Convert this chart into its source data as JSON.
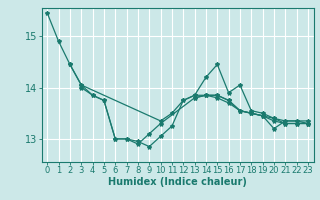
{
  "background_color": "#cce8e8",
  "grid_color": "#ffffff",
  "line_color": "#1a7a6e",
  "xlabel": "Humidex (Indice chaleur)",
  "xlim": [
    -0.5,
    23.5
  ],
  "ylim": [
    12.55,
    15.55
  ],
  "yticks": [
    13,
    14,
    15
  ],
  "xticks": [
    0,
    1,
    2,
    3,
    4,
    5,
    6,
    7,
    8,
    9,
    10,
    11,
    12,
    13,
    14,
    15,
    16,
    17,
    18,
    19,
    20,
    21,
    22,
    23
  ],
  "series": [
    [
      15.45,
      14.9,
      14.45,
      14.05,
      13.85,
      13.75,
      13.0,
      13.0,
      12.95,
      12.85,
      13.05,
      13.25,
      13.75,
      13.85,
      13.85,
      13.8,
      13.7,
      13.55,
      13.5,
      13.45,
      13.4,
      13.3,
      13.3,
      13.3
    ],
    [
      null,
      null,
      14.45,
      14.05,
      null,
      null,
      null,
      null,
      null,
      null,
      13.35,
      13.5,
      13.75,
      13.85,
      14.2,
      14.45,
      13.9,
      14.05,
      13.55,
      13.5,
      13.4,
      13.35,
      13.35,
      13.3
    ],
    [
      null,
      null,
      null,
      14.0,
      13.85,
      13.75,
      13.0,
      13.0,
      12.9,
      13.1,
      13.3,
      null,
      null,
      13.8,
      13.85,
      13.85,
      13.75,
      13.55,
      13.5,
      13.45,
      13.2,
      13.35,
      13.35,
      13.35
    ],
    [
      null,
      null,
      null,
      null,
      null,
      null,
      null,
      null,
      null,
      null,
      null,
      null,
      null,
      13.8,
      13.85,
      13.85,
      13.75,
      13.55,
      13.5,
      13.45,
      13.35,
      13.3,
      13.3,
      13.3
    ]
  ],
  "tick_fontsize": 6,
  "xlabel_fontsize": 7,
  "linewidth": 0.9,
  "markersize": 3
}
